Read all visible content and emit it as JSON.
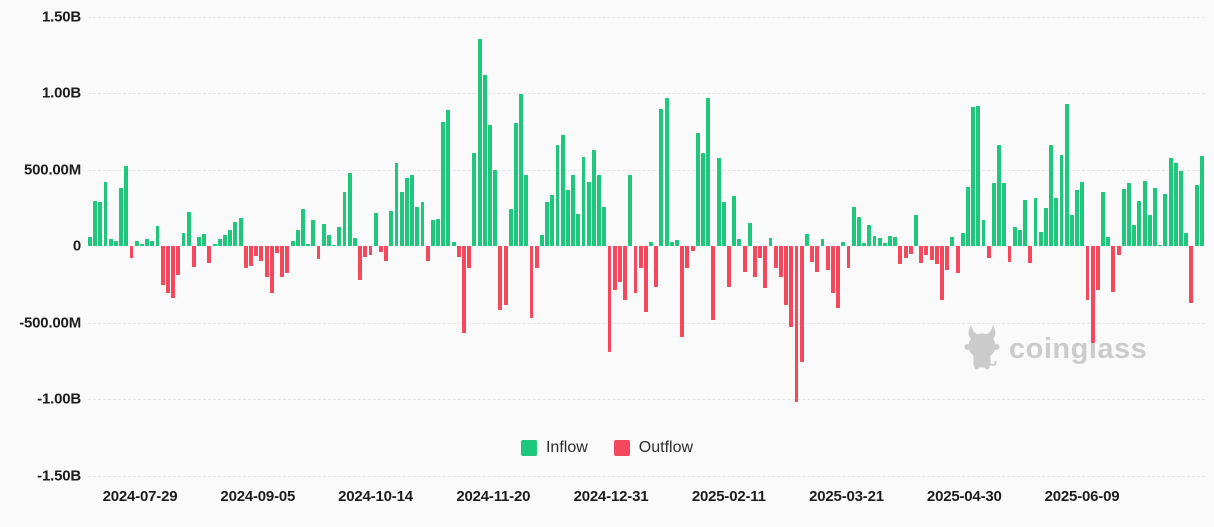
{
  "chart_data": {
    "type": "bar",
    "title": "",
    "xlabel": "",
    "ylabel": "",
    "unit_note": "values are net flows in millions of USD; positive = Inflow (green), negative = Outflow (red)",
    "ylim_m": [
      -1500,
      1500
    ],
    "grid": "horizontal dashed lines at every 500M except zero line",
    "legend_position": "bottom center",
    "y_ticks": [
      {
        "label": "1.50B",
        "value_m": 1500
      },
      {
        "label": "1.00B",
        "value_m": 1000
      },
      {
        "label": "500.00M",
        "value_m": 500
      },
      {
        "label": "0",
        "value_m": 0
      },
      {
        "label": "-500.00M",
        "value_m": -500
      },
      {
        "label": "-1.00B",
        "value_m": -1000
      },
      {
        "label": "-1.50B",
        "value_m": -1500
      }
    ],
    "x_tick_labels": [
      "2024-07-29",
      "2024-09-05",
      "2024-10-14",
      "2024-11-20",
      "2024-12-31",
      "2025-02-11",
      "2025-03-21",
      "2025-04-30",
      "2025-06-09"
    ],
    "legend": [
      {
        "label": "Inflow",
        "color": "#1FC77D"
      },
      {
        "label": "Outflow",
        "color": "#F4495C"
      }
    ],
    "values_in_millions": [
      61,
      296,
      286,
      420,
      46,
      33,
      381,
      525,
      -80,
      35,
      13,
      46,
      35,
      133,
      -255,
      -310,
      -342,
      -190,
      87,
      225,
      -135,
      61,
      76,
      -113,
      13,
      44,
      72,
      105,
      159,
      181,
      -146,
      -129,
      -65,
      -98,
      -200,
      -305,
      -44,
      -200,
      -179,
      33,
      105,
      240,
      13,
      170,
      -87,
      144,
      72,
      9,
      122,
      355,
      480,
      50,
      -222,
      -70,
      -59,
      214,
      -37,
      -96,
      231,
      541,
      355,
      443,
      464,
      257,
      285,
      -98,
      170,
      174,
      813,
      889,
      28,
      -70,
      -571,
      -146,
      607,
      1355,
      1118,
      791,
      497,
      -418,
      -386,
      240,
      802,
      992,
      464,
      -473,
      -146,
      72,
      290,
      333,
      660,
      726,
      366,
      464,
      207,
      584,
      416,
      628,
      464,
      257,
      -691,
      -288,
      -233,
      -353,
      464,
      -310,
      -146,
      -429,
      28,
      -266,
      894,
      966,
      28,
      39,
      -593,
      -146,
      -31,
      741,
      610,
      966,
      -484,
      573,
      290,
      -266,
      327,
      46,
      -168,
      153,
      -200,
      -81,
      -277,
      55,
      -146,
      -200,
      -386,
      -528,
      -1020,
      -760,
      80,
      -102,
      -168,
      44,
      -157,
      -310,
      -408,
      28,
      -146,
      253,
      192,
      17,
      137,
      65,
      50,
      17,
      65,
      57,
      -118,
      -81,
      -52,
      203,
      -113,
      -59,
      -92,
      -118,
      -353,
      -157,
      57,
      -179,
      83,
      384,
      907,
      916,
      170,
      -81,
      410,
      660,
      410,
      -102,
      126,
      105,
      301,
      -113,
      312,
      94,
      246,
      660,
      312,
      595,
      929,
      203,
      366,
      421,
      -353,
      -637,
      -288,
      355,
      57,
      -299,
      -59,
      371,
      410,
      137,
      296,
      427,
      203,
      377,
      7,
      338,
      578,
      545,
      490,
      83,
      -375,
      399,
      589
    ]
  },
  "watermark": {
    "text": "coinglass",
    "icon": "bull-mascot-icon"
  },
  "colors": {
    "inflow": "#1FC77D",
    "outflow": "#F4495C",
    "background": "#FAFAFA",
    "grid": "#E5E5E5",
    "axis_text": "#1C1C1C",
    "watermark": "#CBCBCB"
  }
}
